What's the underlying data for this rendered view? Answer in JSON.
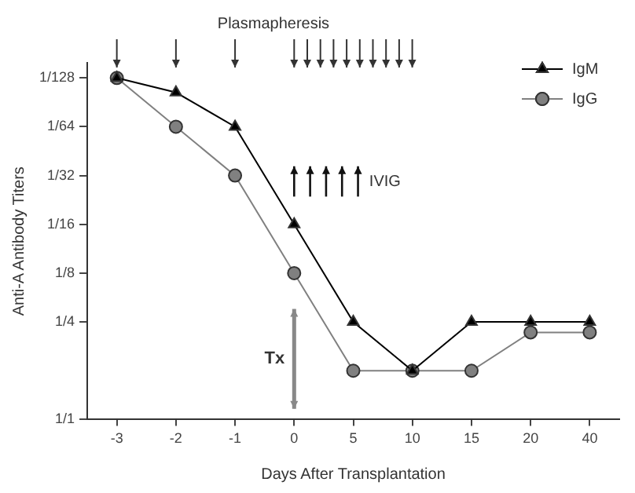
{
  "chart_data": {
    "type": "line",
    "xlabel": "Days After Transplantation",
    "ylabel": "Anti-A Antibody Titers",
    "categories": [
      "-3",
      "-2",
      "-1",
      "0",
      "5",
      "10",
      "15",
      "20",
      "40"
    ],
    "series": [
      {
        "name": "IgM",
        "color": "#000000",
        "marker": "triangle",
        "values": [
          0.0078125,
          0.0096,
          0.015625,
          0.0625,
          0.25,
          0.5,
          0.25,
          0.25,
          0.25
        ]
      },
      {
        "name": "IgG",
        "color": "#808080",
        "marker": "circle",
        "values": [
          0.0078125,
          0.015625,
          0.03125,
          0.125,
          0.5,
          0.5,
          0.5,
          0.29,
          0.29
        ]
      }
    ],
    "ylim": [
      1,
      0.0063
    ],
    "log": "y",
    "yticks": [
      {
        "value": 1,
        "label": "1/1"
      },
      {
        "value": 0.25,
        "label": "1/4"
      },
      {
        "value": 0.125,
        "label": "1/8"
      },
      {
        "value": 0.0625,
        "label": "1/16"
      },
      {
        "value": 0.03125,
        "label": "1/32"
      },
      {
        "value": 0.015625,
        "label": "1/64"
      },
      {
        "value": 0.0078125,
        "label": "1/128"
      }
    ],
    "annotations": [
      "Plasmapheresis",
      "IVIG",
      "Tx"
    ],
    "grid": false,
    "legend": "top right",
    "line_style": "solid"
  }
}
